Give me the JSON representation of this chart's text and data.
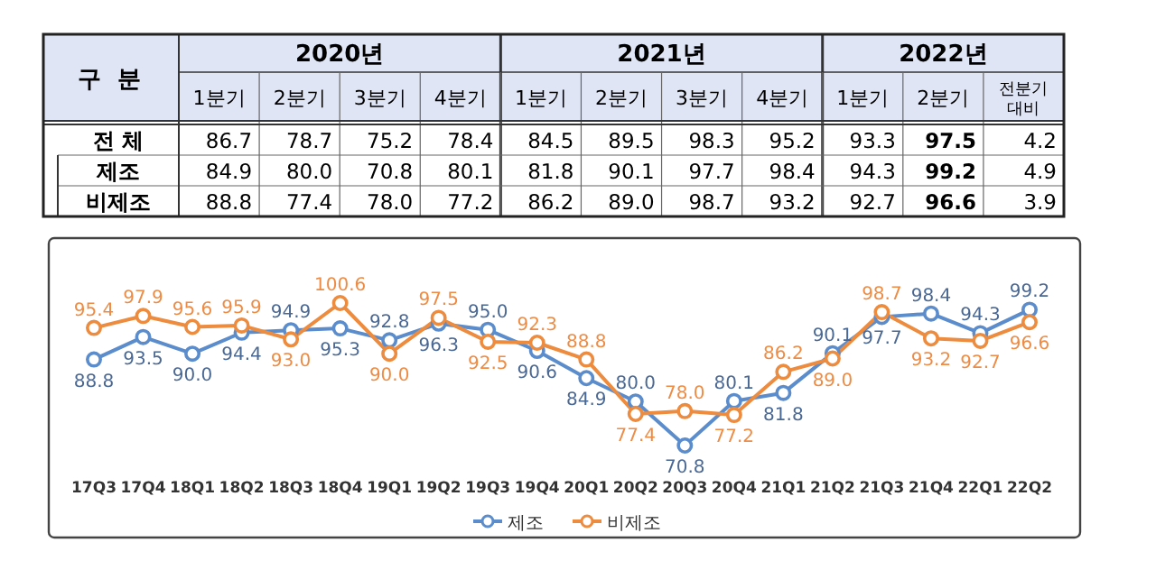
{
  "chart_data": [
    {
      "type": "heatmap",
      "title": "구 분",
      "annotations": [
        "2020년",
        "2021년",
        "2022년"
      ],
      "categories": [
        "1분기",
        "2분기",
        "3분기",
        "4분기",
        "1분기",
        "2분기",
        "3분기",
        "4분기",
        "1분기",
        "2분기",
        "전분기 대비"
      ],
      "y_categories": [
        "전 체",
        "제조",
        "비제조"
      ],
      "cells": [
        [
          86.7,
          78.7,
          75.2,
          78.4,
          84.5,
          89.5,
          98.3,
          95.2,
          93.3,
          97.5,
          4.2
        ],
        [
          84.9,
          80.0,
          70.8,
          80.1,
          81.8,
          90.1,
          97.7,
          98.4,
          94.3,
          99.2,
          4.9
        ],
        [
          88.8,
          77.4,
          78.0,
          77.2,
          86.2,
          89.0,
          98.7,
          93.2,
          92.7,
          96.6,
          3.9
        ]
      ],
      "cell_labels": [
        [
          "86.7",
          "78.7",
          "75.2",
          "78.4",
          "84.5",
          "89.5",
          "98.3",
          "95.2",
          "93.3",
          "97.5",
          "4.2"
        ],
        [
          "84.9",
          "80.0",
          "70.8",
          "80.1",
          "81.8",
          "90.1",
          "97.7",
          "98.4",
          "94.3",
          "99.2",
          "4.9"
        ],
        [
          "88.8",
          "77.4",
          "78.0",
          "77.2",
          "86.2",
          "89.0",
          "98.7",
          "93.2",
          "92.7",
          "96.6",
          "3.9"
        ]
      ]
    },
    {
      "type": "line",
      "categories": [
        "17Q3",
        "17Q4",
        "18Q1",
        "18Q2",
        "18Q3",
        "18Q4",
        "19Q1",
        "19Q2",
        "19Q3",
        "19Q4",
        "20Q1",
        "20Q2",
        "20Q3",
        "20Q4",
        "21Q1",
        "21Q2",
        "21Q3",
        "21Q4",
        "22Q1",
        "22Q2"
      ],
      "series": [
        {
          "name": "제조",
          "color": "#5b8ccc",
          "values": [
            88.8,
            93.5,
            90.0,
            94.4,
            94.9,
            95.3,
            92.8,
            96.3,
            95.0,
            90.6,
            84.9,
            80.0,
            70.8,
            80.1,
            81.8,
            90.1,
            97.7,
            98.4,
            94.3,
            99.2
          ],
          "value_labels": [
            "88.8",
            "93.5",
            "90.0",
            "94.4",
            "94.9",
            "95.3",
            "92.8",
            "96.3",
            "95.0",
            "90.6",
            "84.9",
            "80.0",
            "70.8",
            "80.1",
            "81.8",
            "90.1",
            "97.7",
            "98.4",
            "94.3",
            "99.2"
          ]
        },
        {
          "name": "비제조",
          "color": "#ed8b3e",
          "values": [
            95.4,
            97.9,
            95.6,
            95.9,
            93.0,
            100.6,
            90.0,
            97.5,
            92.5,
            92.3,
            88.8,
            77.4,
            78.0,
            77.2,
            86.2,
            89.0,
            98.7,
            93.2,
            92.7,
            96.6
          ],
          "value_labels": [
            "95.4",
            "97.9",
            "95.6",
            "95.9",
            "93.0",
            "100.6",
            "90.0",
            "97.5",
            "92.5",
            "92.3",
            "88.8",
            "77.4",
            "78.0",
            "77.2",
            "86.2",
            "89.0",
            "98.7",
            "93.2",
            "92.7",
            "96.6"
          ]
        }
      ],
      "marker": "circle",
      "legend": "bottom"
    }
  ]
}
